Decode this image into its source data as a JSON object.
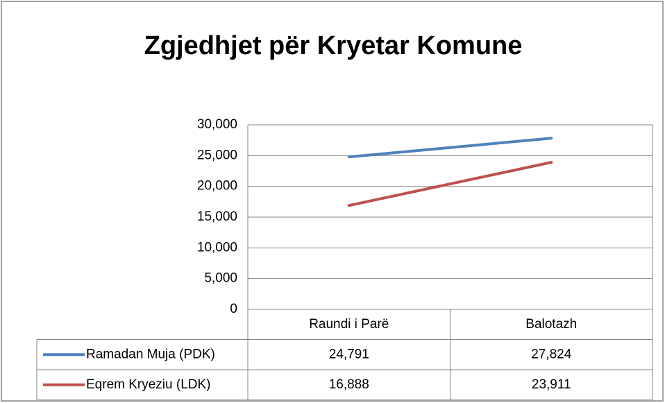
{
  "chart_data": {
    "type": "line",
    "title": "Zgjedhjet për Kryetar Komune",
    "categories": [
      "Raundi i Parë",
      "Balotazh"
    ],
    "series": [
      {
        "name": "Ramadan Muja (PDK)",
        "color": "#4f81bd",
        "values": [
          24791,
          27824
        ],
        "value_labels": [
          "24,791",
          "27,824"
        ]
      },
      {
        "name": "Eqrem Kryeziu (LDK)",
        "color": "#c0504d",
        "values": [
          16888,
          23911
        ],
        "value_labels": [
          "16,888",
          "23,911"
        ]
      }
    ],
    "ylim": [
      0,
      30000
    ],
    "yticks": [
      0,
      {
        "value": 5000,
        "label": "5,000"
      },
      {
        "value": 10000,
        "label": "10,000"
      },
      {
        "value": 15000,
        "label": "15,000"
      },
      {
        "value": 20000,
        "label": "20,000"
      },
      {
        "value": 25000,
        "label": "25,000"
      },
      {
        "value": 30000,
        "label": "30,000"
      }
    ],
    "grid": true,
    "data_table": true
  }
}
